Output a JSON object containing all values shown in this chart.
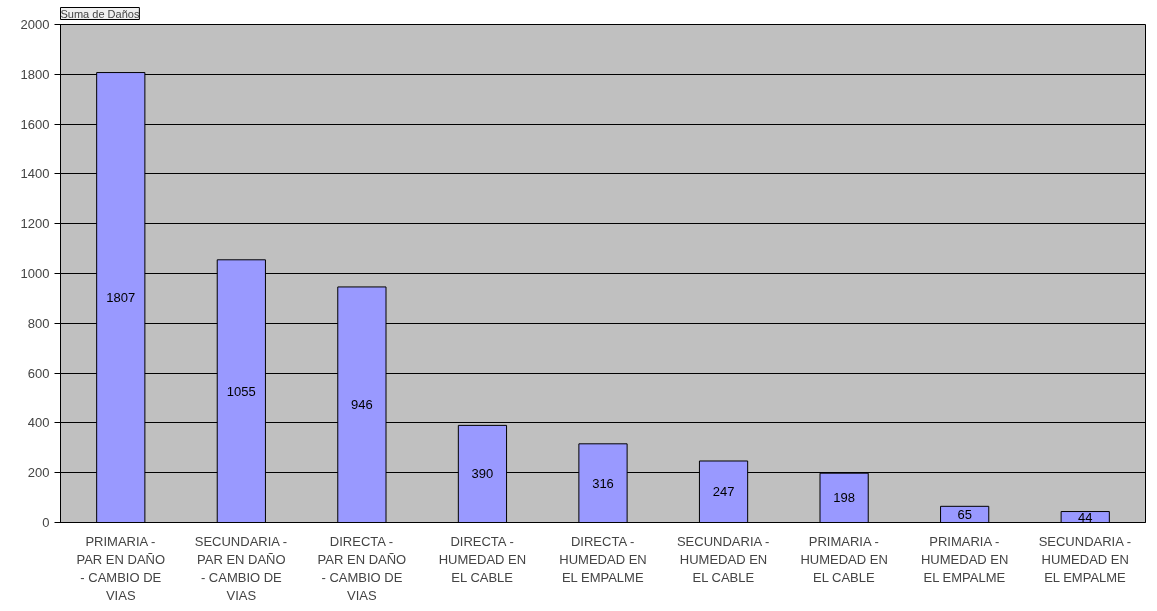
{
  "chart_data": {
    "type": "bar",
    "title": "Suma de Daños",
    "categories": [
      "PRIMARIA - PAR EN DAÑO - CAMBIO DE VIAS",
      "SECUNDARIA - PAR EN DAÑO - CAMBIO DE VIAS",
      "DIRECTA - PAR EN DAÑO - CAMBIO DE VIAS",
      "DIRECTA - HUMEDAD EN EL CABLE",
      "DIRECTA - HUMEDAD EN EL EMPALME",
      "SECUNDARIA - HUMEDAD EN EL CABLE",
      "PRIMARIA - HUMEDAD EN EL CABLE",
      "PRIMARIA - HUMEDAD EN EL EMPALME",
      "SECUNDARIA - HUMEDAD EN EL EMPALME"
    ],
    "values": [
      1807,
      1055,
      946,
      390,
      316,
      247,
      198,
      65,
      44
    ],
    "color": "#9999ff",
    "ylim": [
      0,
      2000
    ],
    "yticks": [
      0,
      200,
      400,
      600,
      800,
      1000,
      1200,
      1400,
      1600,
      1800,
      2000
    ],
    "grid": "y",
    "data_labels": true
  }
}
